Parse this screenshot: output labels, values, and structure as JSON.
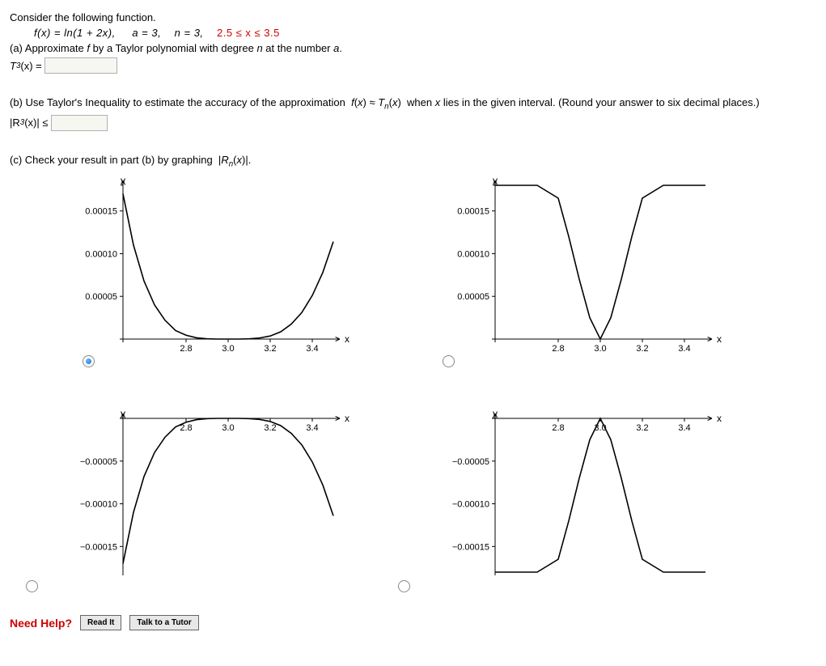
{
  "intro": "Consider the following function.",
  "func_lhs": "f(x) = ln(1 + 2x),",
  "a_eq": "a = 3,",
  "n_eq": "n = 3,",
  "interval": "2.5 ≤ x ≤ 3.5",
  "part_a": "(a) Approximate f by a Taylor polynomial with degree n at the number a.",
  "t3_label_pre": "T",
  "t3_label_post": "(x) =",
  "part_b": "(b) Use Taylor's Inequality to estimate the accuracy of the approximation  f(x) ≈ Tₙ(x)  when x lies in the given interval. (Round your answer to six decimal places.)",
  "r3_pre": "|R",
  "r3_post": "(x)| ≤",
  "part_c": "(c) Check your result in part (b) by graphing  |Rₙ(x)|.",
  "need_help": "Need Help?",
  "btn_read": "Read It",
  "btn_tutor": "Talk to a Tutor",
  "three": "3",
  "plots": {
    "type": "small-multiples",
    "stroke_color": "#000000",
    "stroke_width": 1.6,
    "background_color": "#ffffff",
    "axis_y_label": "y",
    "axis_x_label": "x",
    "label_fontsize": 12,
    "tick_fontsize": 11,
    "top_left": {
      "selected": true,
      "x_ticks": [
        2.8,
        3.0,
        3.2,
        3.4
      ],
      "y_ticks": [
        5e-05,
        0.0001,
        0.00015
      ],
      "xlim": [
        2.5,
        3.5
      ],
      "ylim": [
        0,
        0.00018
      ],
      "series": [
        {
          "x": 2.5,
          "y": 0.00017
        },
        {
          "x": 2.55,
          "y": 0.00011
        },
        {
          "x": 2.6,
          "y": 6.8e-05
        },
        {
          "x": 2.65,
          "y": 4e-05
        },
        {
          "x": 2.7,
          "y": 2.2e-05
        },
        {
          "x": 2.75,
          "y": 1e-05
        },
        {
          "x": 2.8,
          "y": 4.5e-06
        },
        {
          "x": 2.85,
          "y": 1.5e-06
        },
        {
          "x": 2.9,
          "y": 3e-07
        },
        {
          "x": 2.95,
          "y": 0.0
        },
        {
          "x": 3.0,
          "y": 0.0
        },
        {
          "x": 3.05,
          "y": 0.0
        },
        {
          "x": 3.1,
          "y": 3e-07
        },
        {
          "x": 3.15,
          "y": 1.3e-06
        },
        {
          "x": 3.2,
          "y": 3.6e-06
        },
        {
          "x": 3.25,
          "y": 8.5e-06
        },
        {
          "x": 3.3,
          "y": 1.75e-05
        },
        {
          "x": 3.35,
          "y": 3.1e-05
        },
        {
          "x": 3.4,
          "y": 5.1e-05
        },
        {
          "x": 3.45,
          "y": 7.8e-05
        },
        {
          "x": 3.5,
          "y": 0.000114
        }
      ]
    },
    "top_right": {
      "selected": false,
      "x_ticks": [
        2.8,
        3.0,
        3.2,
        3.4
      ],
      "y_ticks": [
        5e-05,
        0.0001,
        0.00015
      ],
      "xlim": [
        2.5,
        3.5
      ],
      "ylim": [
        0,
        0.00018
      ],
      "series": [
        {
          "x": 2.5,
          "y": 0.00018
        },
        {
          "x": 2.6,
          "y": 0.00018
        },
        {
          "x": 2.7,
          "y": 0.00018
        },
        {
          "x": 2.8,
          "y": 0.000165
        },
        {
          "x": 2.85,
          "y": 0.00012
        },
        {
          "x": 2.9,
          "y": 7e-05
        },
        {
          "x": 2.95,
          "y": 2.5e-05
        },
        {
          "x": 3.0,
          "y": 0.0
        },
        {
          "x": 3.05,
          "y": 2.5e-05
        },
        {
          "x": 3.1,
          "y": 7e-05
        },
        {
          "x": 3.15,
          "y": 0.00012
        },
        {
          "x": 3.2,
          "y": 0.000165
        },
        {
          "x": 3.3,
          "y": 0.00018
        },
        {
          "x": 3.4,
          "y": 0.00018
        },
        {
          "x": 3.5,
          "y": 0.00018
        }
      ]
    },
    "bot_left": {
      "selected": false,
      "x_ticks": [
        2.8,
        3.0,
        3.2,
        3.4
      ],
      "y_ticks": [
        -5e-05,
        -0.0001,
        -0.00015
      ],
      "xlim": [
        2.5,
        3.5
      ],
      "ylim": [
        -0.00018,
        0
      ],
      "series": [
        {
          "x": 2.5,
          "y": -0.00017
        },
        {
          "x": 2.55,
          "y": -0.00011
        },
        {
          "x": 2.6,
          "y": -6.8e-05
        },
        {
          "x": 2.65,
          "y": -4e-05
        },
        {
          "x": 2.7,
          "y": -2.2e-05
        },
        {
          "x": 2.75,
          "y": -1e-05
        },
        {
          "x": 2.8,
          "y": -4.5e-06
        },
        {
          "x": 2.85,
          "y": -1.5e-06
        },
        {
          "x": 2.9,
          "y": -3e-07
        },
        {
          "x": 2.95,
          "y": 0.0
        },
        {
          "x": 3.0,
          "y": 0.0
        },
        {
          "x": 3.05,
          "y": 0.0
        },
        {
          "x": 3.1,
          "y": -3e-07
        },
        {
          "x": 3.15,
          "y": -1.3e-06
        },
        {
          "x": 3.2,
          "y": -3.6e-06
        },
        {
          "x": 3.25,
          "y": -8.5e-06
        },
        {
          "x": 3.3,
          "y": -1.75e-05
        },
        {
          "x": 3.35,
          "y": -3.1e-05
        },
        {
          "x": 3.4,
          "y": -5.1e-05
        },
        {
          "x": 3.45,
          "y": -7.8e-05
        },
        {
          "x": 3.5,
          "y": -0.000114
        }
      ]
    },
    "bot_right": {
      "selected": false,
      "x_ticks": [
        2.8,
        3.0,
        3.2,
        3.4
      ],
      "y_ticks": [
        -5e-05,
        -0.0001,
        -0.00015
      ],
      "xlim": [
        2.5,
        3.5
      ],
      "ylim": [
        -0.00018,
        0
      ],
      "series": [
        {
          "x": 2.5,
          "y": -0.00018
        },
        {
          "x": 2.6,
          "y": -0.00018
        },
        {
          "x": 2.7,
          "y": -0.00018
        },
        {
          "x": 2.8,
          "y": -0.000165
        },
        {
          "x": 2.85,
          "y": -0.00012
        },
        {
          "x": 2.9,
          "y": -7e-05
        },
        {
          "x": 2.95,
          "y": -2.5e-05
        },
        {
          "x": 3.0,
          "y": 0.0
        },
        {
          "x": 3.05,
          "y": -2.5e-05
        },
        {
          "x": 3.1,
          "y": -7e-05
        },
        {
          "x": 3.15,
          "y": -0.00012
        },
        {
          "x": 3.2,
          "y": -0.000165
        },
        {
          "x": 3.3,
          "y": -0.00018
        },
        {
          "x": 3.4,
          "y": -0.00018
        },
        {
          "x": 3.5,
          "y": -0.00018
        }
      ]
    }
  }
}
